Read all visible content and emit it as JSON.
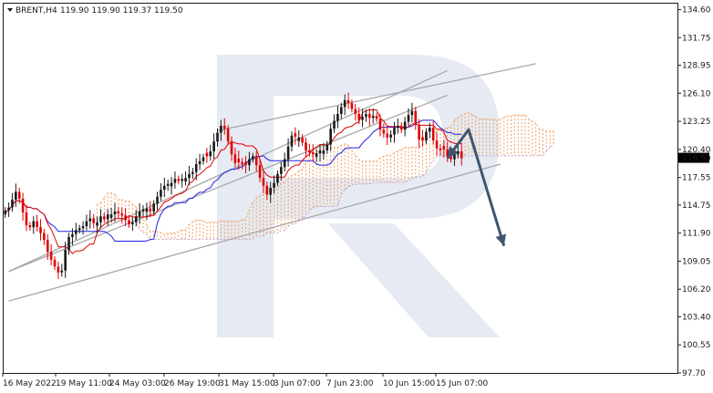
{
  "header": {
    "symbol": "BRENT,H4",
    "ohlc": "119.90 119.90 119.37 119.50"
  },
  "price_badge": "119.50",
  "colors": {
    "bull": "#1a1a1a",
    "bear": "#e00000",
    "kijun": "#2020e0",
    "tenkan": "#e00000",
    "cloud_a": "#f0a060",
    "cloud_b": "#c090c0",
    "channel": "#a8a8a8",
    "arrow": "#3d5670",
    "watermark": "#dde3ee",
    "badge_bg": "#000000",
    "badge_fg": "#ffffff"
  },
  "chart_data": {
    "type": "candlestick",
    "instrument": "BRENT",
    "timeframe": "H4",
    "ylim": [
      97.7,
      135.2
    ],
    "y_ticks": [
      "134.60",
      "131.75",
      "128.95",
      "126.10",
      "123.25",
      "120.40",
      "117.55",
      "114.75",
      "111.90",
      "109.05",
      "106.20",
      "103.40",
      "100.55",
      "97.70"
    ],
    "x_labels": [
      "16 May 2022",
      "19 May 11:00",
      "24 May 03:00",
      "26 May 19:00",
      "31 May 15:00",
      "3 Jun 07:00",
      "7 Jun 23:00",
      "10 Jun 15:00",
      "15 Jun 07:00"
    ],
    "n_bars": 130,
    "closes": [
      114.2,
      114.5,
      115.3,
      116.1,
      115.4,
      114.0,
      112.7,
      112.5,
      113.1,
      112.5,
      111.9,
      111.2,
      110.0,
      109.2,
      108.5,
      107.9,
      108.1,
      110.2,
      111.5,
      111.8,
      112.2,
      112.4,
      112.6,
      113.1,
      113.4,
      112.9,
      113.0,
      113.6,
      113.3,
      113.8,
      113.8,
      114.1,
      113.9,
      113.7,
      113.2,
      112.8,
      113.0,
      113.6,
      114.1,
      114.3,
      114.4,
      114.1,
      114.9,
      115.6,
      116.3,
      116.7,
      116.9,
      117.0,
      117.4,
      117.2,
      117.4,
      117.5,
      117.9,
      118.1,
      118.9,
      119.2,
      119.6,
      119.7,
      120.2,
      121.2,
      122.1,
      122.8,
      122.5,
      121.2,
      119.9,
      119.0,
      119.1,
      118.9,
      118.8,
      119.4,
      119.7,
      118.8,
      117.5,
      116.7,
      115.8,
      116.5,
      117.0,
      117.9,
      118.6,
      119.4,
      120.7,
      121.8,
      121.7,
      121.6,
      121.1,
      120.3,
      120.1,
      119.9,
      120.0,
      120.3,
      120.3,
      120.9,
      122.5,
      123.3,
      124.0,
      124.7,
      125.4,
      125.1,
      124.5,
      124.0,
      123.4,
      123.7,
      124.0,
      123.6,
      123.8,
      123.5,
      122.4,
      122.0,
      121.6,
      121.9,
      122.6,
      122.8,
      122.4,
      123.2,
      123.9,
      124.3,
      122.9,
      121.4,
      121.3,
      122.2,
      122.6,
      121.3,
      120.5,
      120.3,
      120.4,
      119.7,
      119.4,
      119.9,
      120.2,
      119.5
    ],
    "bearish_flags": [
      false,
      true,
      false,
      false,
      true,
      true,
      true,
      false,
      true,
      false,
      true,
      false,
      true,
      false,
      false,
      false,
      false,
      true,
      false,
      false,
      false,
      true,
      false,
      true,
      false,
      true,
      false,
      true,
      false,
      true,
      false,
      false,
      true,
      false,
      true,
      false,
      false,
      true,
      false,
      false,
      false,
      true,
      false,
      true,
      false,
      false,
      true,
      false,
      false,
      false,
      true,
      false,
      false,
      true,
      false,
      false,
      false,
      true,
      false,
      false,
      false,
      true,
      true,
      true,
      false,
      true,
      true,
      false,
      true,
      false,
      false,
      true,
      true,
      false,
      true,
      false,
      true,
      false,
      false,
      false,
      false,
      true,
      true,
      false,
      true,
      true,
      false,
      true,
      false,
      false,
      false,
      true,
      false,
      false,
      false,
      true,
      true,
      false,
      true,
      false,
      false,
      true,
      false,
      false,
      true,
      false,
      true,
      false,
      true,
      true,
      false,
      true,
      false,
      false,
      true,
      false,
      false,
      false,
      true,
      false,
      false,
      true,
      true,
      false,
      true,
      false,
      false,
      true,
      false,
      true
    ],
    "indicators": [
      "Ichimoku Kinko Hyo (Tenkan-sen, Kijun-sen, Senkou Span A/B cloud)"
    ],
    "annotations": [
      {
        "type": "channel_line",
        "from": [
          1,
          108.0
        ],
        "to": [
          125,
          128.4
        ]
      },
      {
        "type": "channel_line",
        "from": [
          1,
          108.0
        ],
        "to": [
          125,
          125.9
        ]
      },
      {
        "type": "channel_line",
        "from": [
          60,
          122.3
        ],
        "to": [
          150,
          129.1
        ]
      },
      {
        "type": "channel_line",
        "from": [
          1,
          105.0
        ],
        "to": [
          140,
          118.9
        ]
      },
      {
        "type": "forecast_arrow",
        "points": [
          [
            125,
            119.5
          ],
          [
            131,
            122.4
          ],
          [
            141,
            110.6
          ]
        ]
      }
    ],
    "grid": false
  }
}
